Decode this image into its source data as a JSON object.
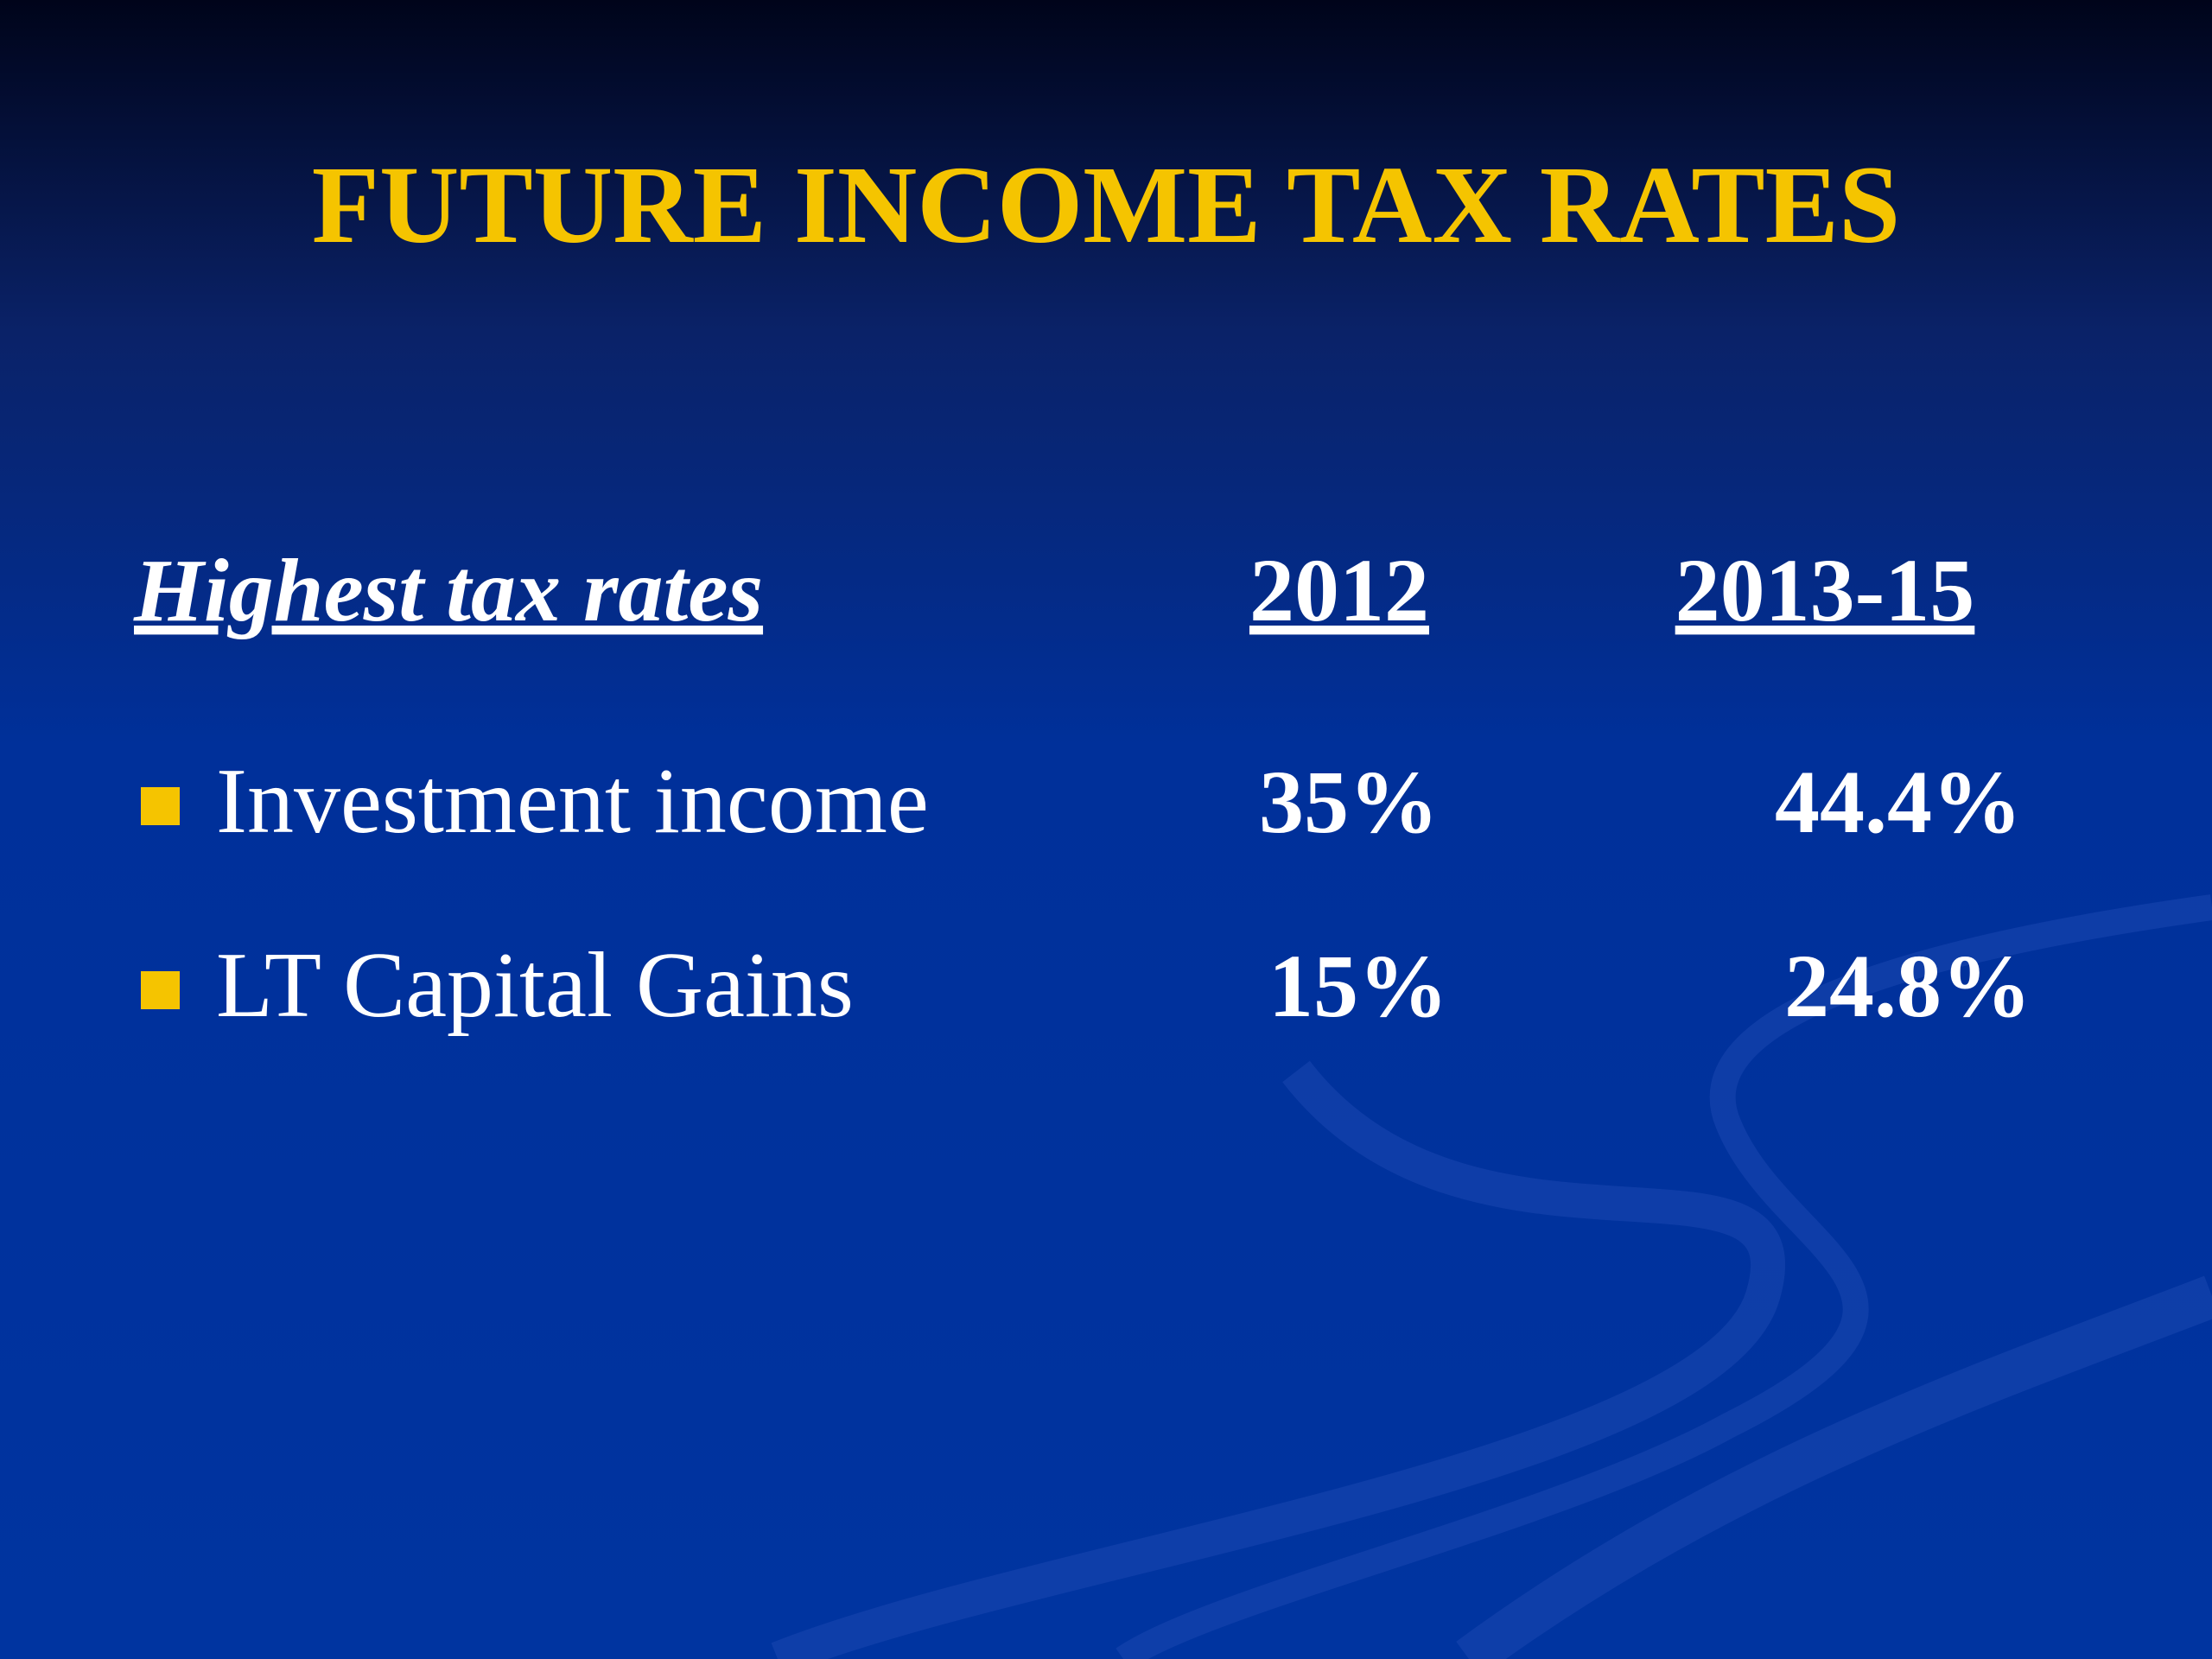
{
  "header": {
    "title": "FUTURE INCOME TAX RATES"
  },
  "table": {
    "header": [
      "Highest tax rates",
      "2012",
      "2013-15"
    ],
    "rows": [
      [
        "Investment income",
        "35%",
        "44.4%"
      ],
      [
        "LT Capital Gains",
        "15%",
        "24.8%"
      ]
    ]
  }
}
